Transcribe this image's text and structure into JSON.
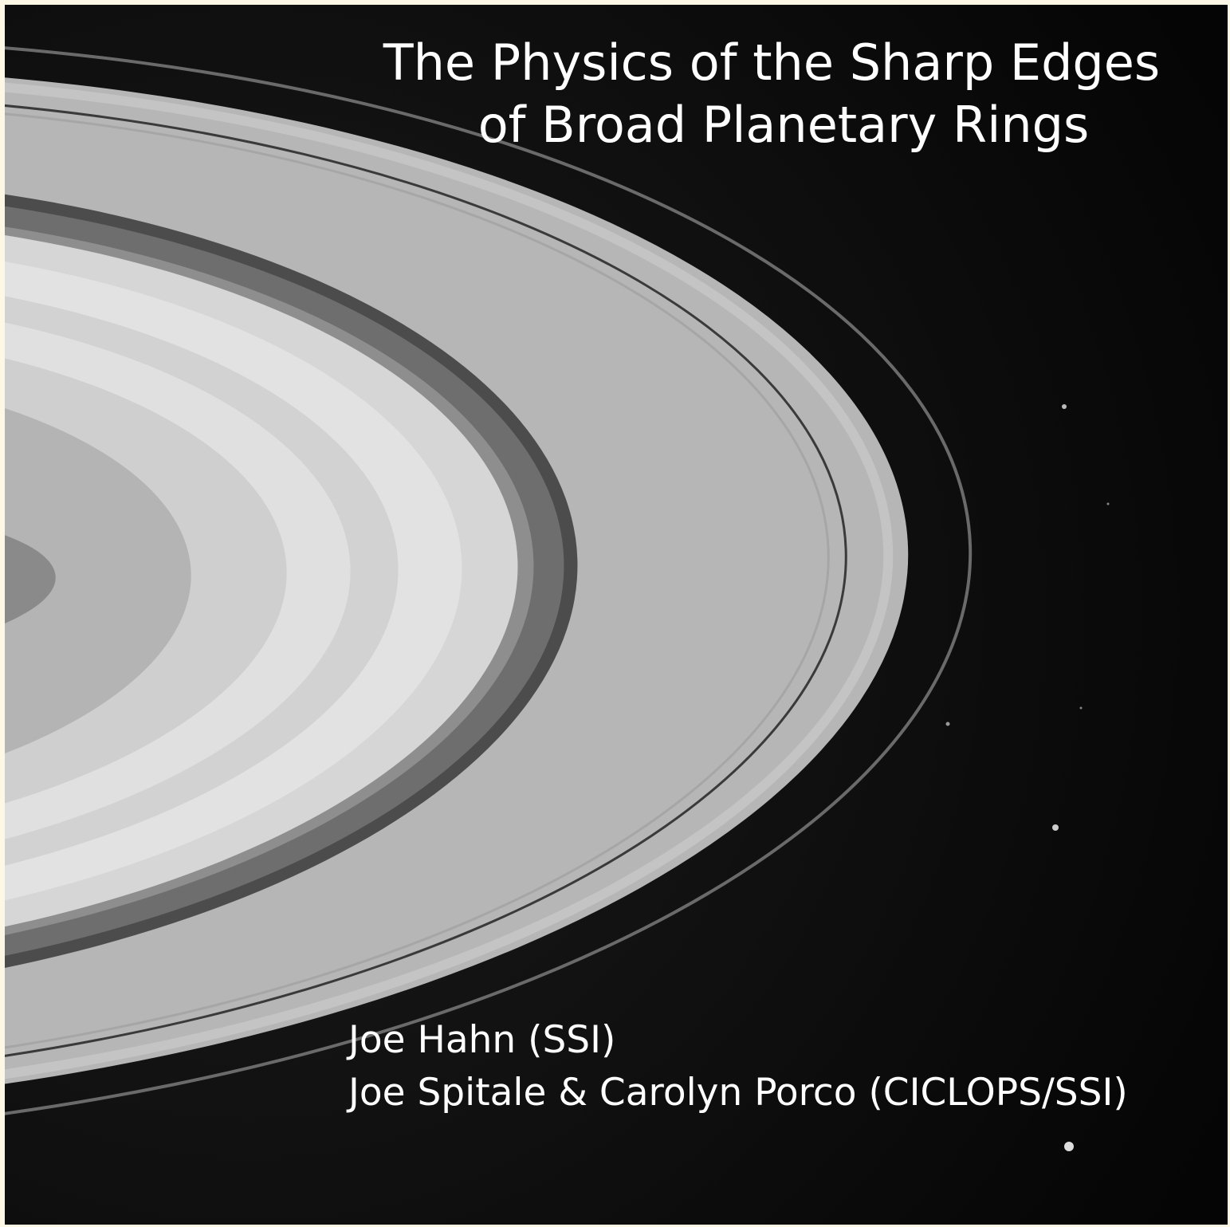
{
  "title": {
    "lines": [
      "The Physics of the Sharp Edges",
      "of Broad Planetary Rings"
    ]
  },
  "authors": {
    "lines": [
      "Joe Hahn (SSI)",
      "Joe Spitale & Carolyn Porco (CICLOPS/SSI)"
    ]
  }
}
